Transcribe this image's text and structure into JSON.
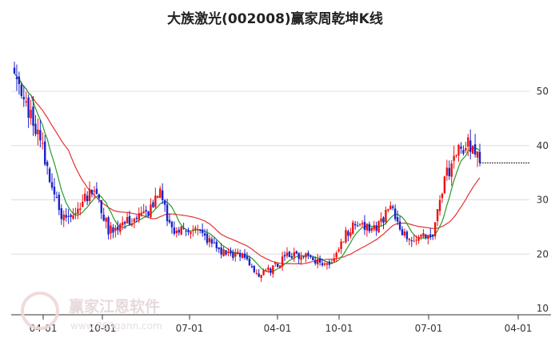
{
  "chart_data": {
    "type": "candlestick",
    "title": "大族激光(002008)赢家周乾坤K线",
    "ylim": [
      10,
      55
    ],
    "y_ticks": [
      10,
      20,
      30,
      40,
      50
    ],
    "x_ticks": [
      "04-01",
      "10-01",
      "07-01",
      "04-01",
      "10-01",
      "07-01",
      "04-01"
    ],
    "grid": true,
    "colors": {
      "up": "#ee1111",
      "down": "#1a22cc",
      "ma_fast": "#2a9a2a",
      "ma_slow": "#e33333",
      "grid": "#dddddd"
    },
    "last_price": 36.8,
    "key_points": [
      {
        "period": 0,
        "price": 52.0
      },
      {
        "period": 8,
        "price": 45.0
      },
      {
        "period": 14,
        "price": 36.0
      },
      {
        "period": 20,
        "price": 26.5
      },
      {
        "period": 28,
        "price": 29.0
      },
      {
        "period": 34,
        "price": 32.0
      },
      {
        "period": 40,
        "price": 24.5
      },
      {
        "period": 48,
        "price": 26.0
      },
      {
        "period": 56,
        "price": 27.5
      },
      {
        "period": 62,
        "price": 31.0
      },
      {
        "period": 67,
        "price": 24.0
      },
      {
        "period": 76,
        "price": 25.0
      },
      {
        "period": 88,
        "price": 20.5
      },
      {
        "period": 98,
        "price": 19.5
      },
      {
        "period": 104,
        "price": 16.0
      },
      {
        "period": 110,
        "price": 17.5
      },
      {
        "period": 116,
        "price": 19.5
      },
      {
        "period": 124,
        "price": 20.0
      },
      {
        "period": 130,
        "price": 18.5
      },
      {
        "period": 134,
        "price": 18.0
      },
      {
        "period": 140,
        "price": 23.0
      },
      {
        "period": 146,
        "price": 26.0
      },
      {
        "period": 152,
        "price": 24.0
      },
      {
        "period": 160,
        "price": 28.5
      },
      {
        "period": 166,
        "price": 23.5
      },
      {
        "period": 172,
        "price": 22.5
      },
      {
        "period": 178,
        "price": 24.0
      },
      {
        "period": 183,
        "price": 34.0
      },
      {
        "period": 188,
        "price": 38.0
      },
      {
        "period": 193,
        "price": 41.0
      },
      {
        "period": 198,
        "price": 36.8
      }
    ]
  },
  "watermark": {
    "brand": "赢家江恩软件",
    "url": "www.369gann.com"
  }
}
